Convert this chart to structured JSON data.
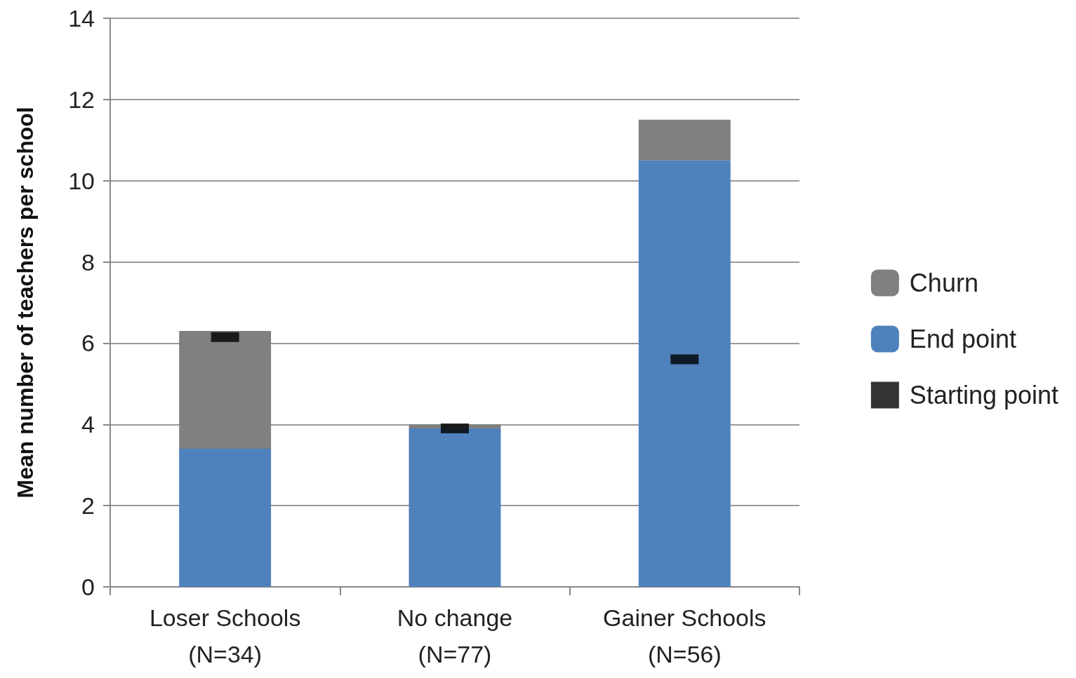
{
  "chart_data": {
    "type": "bar",
    "stacked": true,
    "ylabel": "Mean number of teachers per school",
    "categories": [
      "Loser Schools\n(N=34)",
      "No change\n(N=77)",
      "Gainer Schools\n(N=56)"
    ],
    "series": [
      {
        "name": "End point",
        "color": "#4f81bd",
        "values": [
          3.4,
          3.9,
          10.5
        ]
      },
      {
        "name": "Churn",
        "color": "#808080",
        "values": [
          2.9,
          0.1,
          1.0
        ]
      },
      {
        "name": "Starting point",
        "type": "scatter",
        "color": "#000000",
        "values": [
          6.15,
          3.9,
          5.6
        ]
      }
    ],
    "ylim": [
      0,
      14
    ],
    "yticks": [
      0,
      2,
      4,
      6,
      8,
      10,
      12,
      14
    ],
    "grid": "y",
    "legend": "right"
  }
}
